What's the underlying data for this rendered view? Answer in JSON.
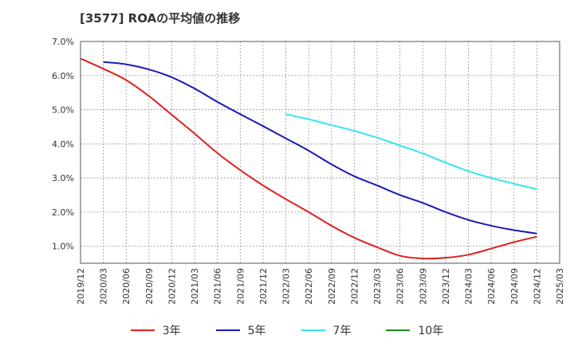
{
  "chart_data": {
    "type": "line",
    "title": "[3577]  ROAの平均値の推移",
    "x": [
      "2019/12",
      "2020/03",
      "2020/06",
      "2020/09",
      "2020/12",
      "2021/03",
      "2021/06",
      "2021/09",
      "2021/12",
      "2022/03",
      "2022/06",
      "2022/09",
      "2022/12",
      "2023/03",
      "2023/06",
      "2023/09",
      "2023/12",
      "2024/03",
      "2024/06",
      "2024/09",
      "2024/12",
      "2025/03"
    ],
    "yticks": [
      "1.0%",
      "2.0%",
      "3.0%",
      "4.0%",
      "5.0%",
      "6.0%",
      "7.0%"
    ],
    "ylim": [
      0.5,
      7.0
    ],
    "grid": true,
    "legend_position": "bottom",
    "series": [
      {
        "name": "3年",
        "color": "#e02020",
        "values": [
          6.5,
          6.2,
          5.87,
          5.4,
          4.85,
          4.3,
          3.73,
          3.23,
          2.78,
          2.38,
          2.0,
          1.6,
          1.25,
          0.97,
          0.72,
          0.64,
          0.66,
          0.75,
          0.93,
          1.12,
          1.28,
          null
        ]
      },
      {
        "name": "5年",
        "color": "#1a1ab8",
        "values": [
          null,
          6.4,
          6.33,
          6.18,
          5.95,
          5.62,
          5.23,
          4.87,
          4.52,
          4.16,
          3.8,
          3.4,
          3.05,
          2.78,
          2.5,
          2.27,
          2.0,
          1.77,
          1.6,
          1.47,
          1.37,
          null
        ]
      },
      {
        "name": "7年",
        "color": "#33e5f0",
        "values": [
          null,
          null,
          null,
          null,
          null,
          null,
          null,
          null,
          null,
          4.87,
          4.72,
          4.55,
          4.38,
          4.18,
          3.95,
          3.72,
          3.45,
          3.2,
          3.0,
          2.83,
          2.67,
          null
        ]
      },
      {
        "name": "10年",
        "color": "#1a8a1a",
        "values": [
          null,
          null,
          null,
          null,
          null,
          null,
          null,
          null,
          null,
          null,
          null,
          null,
          null,
          null,
          null,
          null,
          null,
          null,
          null,
          null,
          null,
          null
        ]
      }
    ]
  }
}
